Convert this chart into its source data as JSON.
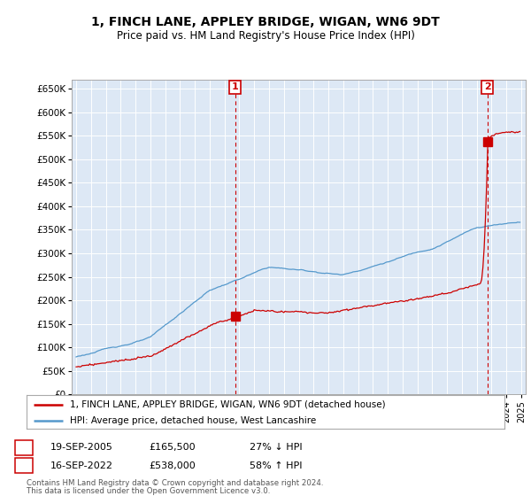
{
  "title": "1, FINCH LANE, APPLEY BRIDGE, WIGAN, WN6 9DT",
  "subtitle": "Price paid vs. HM Land Registry's House Price Index (HPI)",
  "legend_line1": "1, FINCH LANE, APPLEY BRIDGE, WIGAN, WN6 9DT (detached house)",
  "legend_line2": "HPI: Average price, detached house, West Lancashire",
  "transaction1_date": "19-SEP-2005",
  "transaction1_price": "£165,500",
  "transaction1_hpi": "27% ↓ HPI",
  "transaction2_date": "16-SEP-2022",
  "transaction2_price": "£538,000",
  "transaction2_hpi": "58% ↑ HPI",
  "footnote1": "Contains HM Land Registry data © Crown copyright and database right 2024.",
  "footnote2": "This data is licensed under the Open Government Licence v3.0.",
  "red_color": "#cc0000",
  "blue_color": "#5599cc",
  "bg_plot_color": "#dde8f5",
  "background_color": "#ffffff",
  "grid_color": "#ffffff",
  "ylim_min": 0,
  "ylim_max": 670000,
  "sale1_year": 2005.72,
  "sale1_price": 165500,
  "sale2_year": 2022.71,
  "sale2_price": 538000
}
